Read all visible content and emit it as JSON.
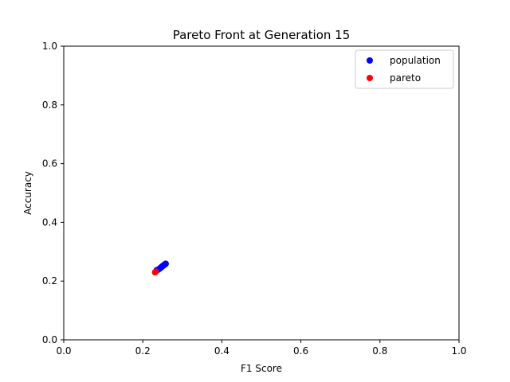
{
  "chart_data": {
    "type": "scatter",
    "title": "Pareto Front at Generation 15",
    "xlabel": "F1 Score",
    "ylabel": "Accuracy",
    "xlim": [
      0.0,
      1.0
    ],
    "ylim": [
      0.0,
      1.0
    ],
    "xticks": [
      "0.0",
      "0.2",
      "0.4",
      "0.6",
      "0.8",
      "1.0"
    ],
    "yticks": [
      "0.0",
      "0.2",
      "0.4",
      "0.6",
      "0.8",
      "1.0"
    ],
    "grid": false,
    "legend_position": "top-right",
    "series": [
      {
        "name": "population",
        "color": "#0000ff",
        "points": [
          {
            "x": 0.235,
            "y": 0.237
          },
          {
            "x": 0.238,
            "y": 0.238
          },
          {
            "x": 0.24,
            "y": 0.24
          },
          {
            "x": 0.242,
            "y": 0.242
          },
          {
            "x": 0.244,
            "y": 0.244
          },
          {
            "x": 0.246,
            "y": 0.246
          },
          {
            "x": 0.248,
            "y": 0.249
          },
          {
            "x": 0.25,
            "y": 0.251
          },
          {
            "x": 0.252,
            "y": 0.253
          },
          {
            "x": 0.254,
            "y": 0.255
          },
          {
            "x": 0.256,
            "y": 0.257
          },
          {
            "x": 0.258,
            "y": 0.259
          }
        ]
      },
      {
        "name": "pareto",
        "color": "#ff0000",
        "points": [
          {
            "x": 0.231,
            "y": 0.23
          },
          {
            "x": 0.233,
            "y": 0.232
          }
        ]
      }
    ]
  }
}
